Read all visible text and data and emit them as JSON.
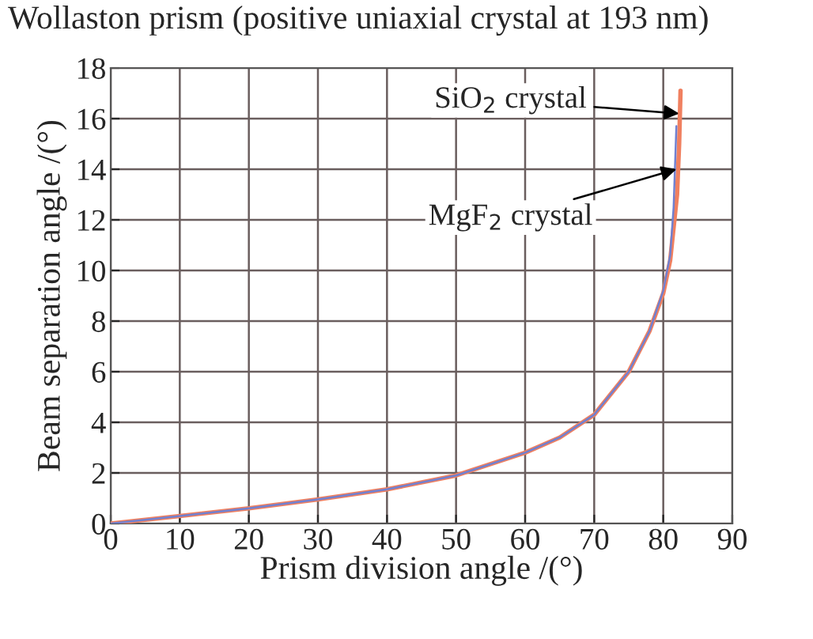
{
  "chart_data": {
    "type": "line",
    "title": "Wollaston prism (positive uniaxial crystal at 193 nm)",
    "xlabel": "Prism division angle /(°)",
    "ylabel": "Beam separation angle /(°)",
    "xlim": [
      0,
      90
    ],
    "ylim": [
      0,
      18
    ],
    "xticks": [
      0,
      10,
      20,
      30,
      40,
      50,
      60,
      70,
      80,
      90
    ],
    "yticks": [
      0,
      2,
      4,
      6,
      8,
      10,
      12,
      14,
      16,
      18
    ],
    "grid": true,
    "line_style": "solid",
    "marker": "none",
    "series": [
      {
        "color": "#7080d0",
        "x": [
          0,
          10,
          20,
          30,
          40,
          50,
          60,
          65,
          70,
          75,
          78,
          80,
          81,
          81.5,
          81.9
        ],
        "values": [
          0,
          0.3,
          0.6,
          0.95,
          1.35,
          1.9,
          2.8,
          3.4,
          4.3,
          6,
          7.6,
          9.2,
          10.6,
          12.5,
          15.7
        ]
      },
      {
        "color": "#f08060",
        "x": [
          0,
          10,
          20,
          30,
          40,
          50,
          60,
          65,
          70,
          75,
          78,
          80,
          81,
          82,
          82.3,
          82.5
        ],
        "values": [
          0,
          0.3,
          0.6,
          0.95,
          1.35,
          1.9,
          2.8,
          3.4,
          4.3,
          6,
          7.6,
          9.1,
          10.4,
          13,
          15,
          17.1
        ]
      }
    ],
    "annotations": [
      {
        "text": "SiO$_{2}$ crystal",
        "x": 82.3,
        "y": 16.2
      },
      {
        "text": "MgF$_{2}$ crystal",
        "x": 81.9,
        "y": 14
      }
    ]
  }
}
